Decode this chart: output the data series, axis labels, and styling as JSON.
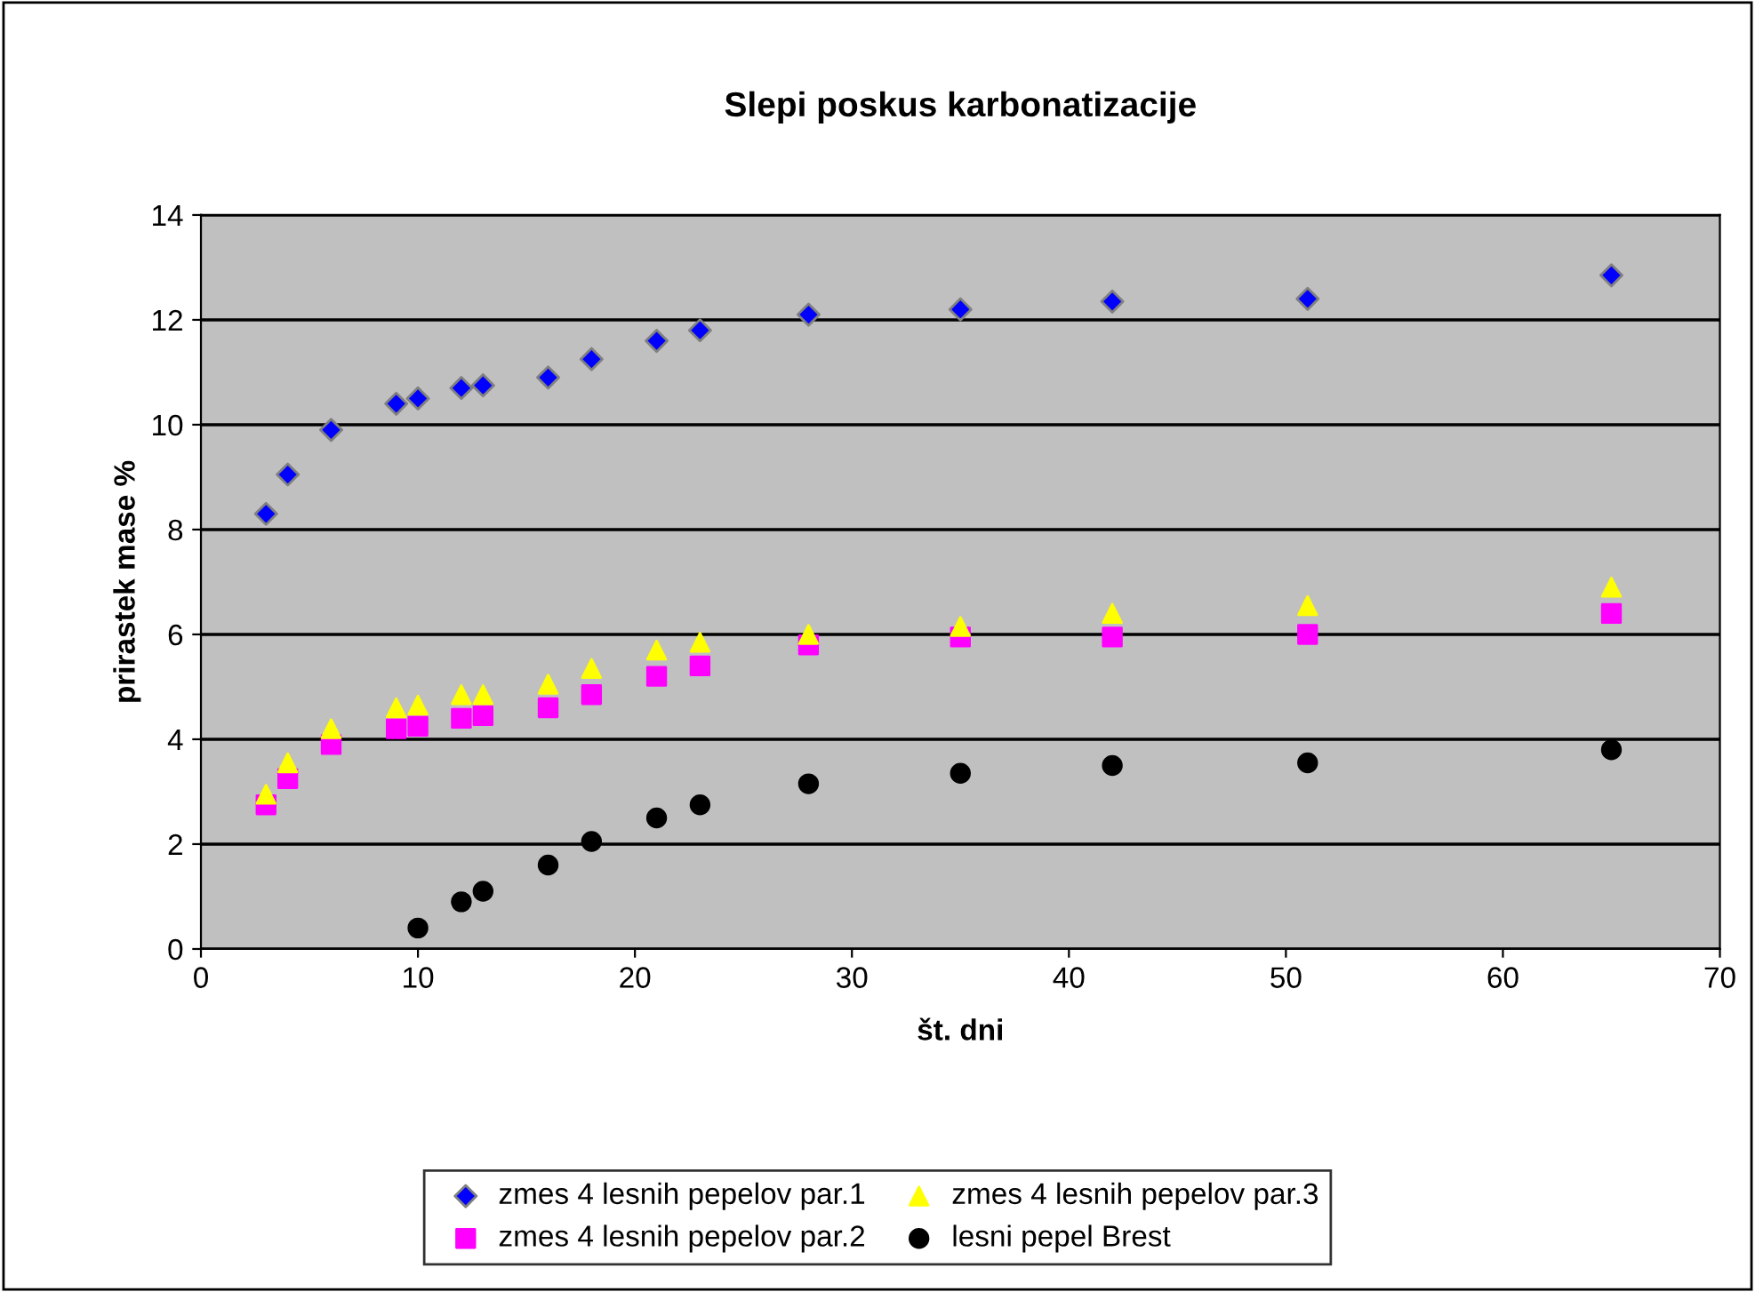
{
  "chart_data": {
    "type": "scatter",
    "title": "Slepi poskus karbonatizacije",
    "xlabel": "št. dni",
    "ylabel": "prirastek mase %",
    "xlim": [
      0,
      70
    ],
    "xticks": [
      0,
      10,
      20,
      30,
      40,
      50,
      60,
      70
    ],
    "ylim": [
      0,
      14
    ],
    "yticks": [
      0,
      2,
      4,
      6,
      8,
      10,
      12,
      14
    ],
    "grid": "y",
    "legend": "bottom",
    "series": [
      {
        "name": "zmes 4 lesnih pepelov par.1",
        "color": "#0000ff",
        "marker": "diamond",
        "x": [
          3,
          4,
          6,
          9,
          10,
          12,
          13,
          16,
          18,
          21,
          23,
          28,
          35,
          42,
          51,
          65
        ],
        "values": [
          8.3,
          9.05,
          9.9,
          10.4,
          10.5,
          10.7,
          10.75,
          10.9,
          11.25,
          11.6,
          11.8,
          12.1,
          12.2,
          12.35,
          12.4,
          12.85
        ]
      },
      {
        "name": "zmes 4 lesnih pepelov par.2",
        "color": "#ff00ff",
        "marker": "square",
        "x": [
          3,
          4,
          6,
          9,
          10,
          12,
          13,
          16,
          18,
          21,
          23,
          28,
          35,
          42,
          51,
          65
        ],
        "values": [
          2.75,
          3.25,
          3.9,
          4.2,
          4.25,
          4.4,
          4.45,
          4.6,
          4.85,
          5.2,
          5.4,
          5.8,
          5.95,
          5.95,
          6.0,
          6.4
        ]
      },
      {
        "name": "zmes 4 lesnih pepelov par.3",
        "color": "#ffff00",
        "marker": "triangle",
        "x": [
          3,
          4,
          6,
          9,
          10,
          12,
          13,
          16,
          18,
          21,
          23,
          28,
          35,
          42,
          51,
          65
        ],
        "values": [
          2.95,
          3.55,
          4.2,
          4.6,
          4.65,
          4.85,
          4.85,
          5.05,
          5.35,
          5.7,
          5.85,
          6.0,
          6.15,
          6.4,
          6.55,
          6.9
        ]
      },
      {
        "name": "lesni pepel Brest",
        "color": "#000000",
        "marker": "circle",
        "x": [
          10,
          12,
          13,
          16,
          18,
          21,
          23,
          28,
          35,
          42,
          51,
          65
        ],
        "values": [
          0.4,
          0.9,
          1.1,
          1.6,
          2.05,
          2.5,
          2.75,
          3.15,
          3.35,
          3.5,
          3.55,
          3.8
        ]
      }
    ]
  }
}
